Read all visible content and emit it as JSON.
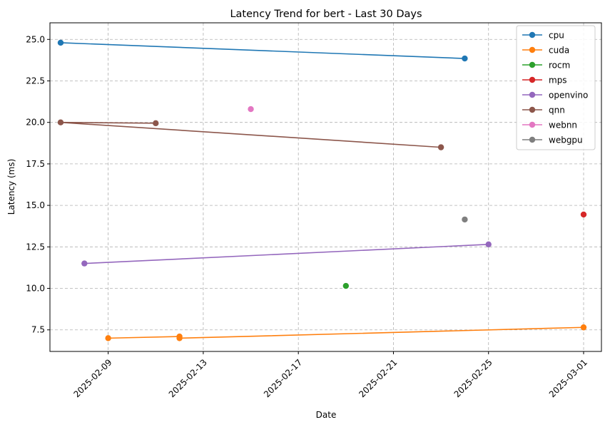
{
  "chart_data": {
    "type": "line",
    "title": "Latency Trend for bert - Last 30 Days",
    "xlabel": "Date",
    "ylabel": "Latency (ms)",
    "xlim": [
      "2025-02-06",
      "2025-03-01"
    ],
    "ylim": [
      6.2,
      26.0
    ],
    "x_ticks": [
      "2025-02-09",
      "2025-02-13",
      "2025-02-17",
      "2025-02-21",
      "2025-02-25",
      "2025-03-01"
    ],
    "y_ticks": [
      7.5,
      10.0,
      12.5,
      15.0,
      17.5,
      20.0,
      22.5,
      25.0
    ],
    "y_tick_labels": [
      "7.5",
      "10.0",
      "12.5",
      "15.0",
      "17.5",
      "20.0",
      "22.5",
      "25.0"
    ],
    "grid": true,
    "legend_position": "top-right",
    "series": [
      {
        "name": "cpu",
        "color": "#1f77b4",
        "points": [
          [
            "2025-02-07",
            24.8
          ],
          [
            "2025-02-24",
            23.85
          ]
        ]
      },
      {
        "name": "cuda",
        "color": "#ff7f0e",
        "points": [
          [
            "2025-03-01",
            7.65
          ],
          [
            "2025-02-12",
            7.0
          ],
          [
            "2025-02-12",
            7.1
          ],
          [
            "2025-02-09",
            7.0
          ]
        ]
      },
      {
        "name": "rocm",
        "color": "#2ca02c",
        "points": [
          [
            "2025-02-19",
            10.15
          ]
        ]
      },
      {
        "name": "mps",
        "color": "#d62728",
        "points": [
          [
            "2025-03-01",
            14.45
          ]
        ]
      },
      {
        "name": "openvino",
        "color": "#9467bd",
        "points": [
          [
            "2025-02-08",
            11.5
          ],
          [
            "2025-02-25",
            12.65
          ]
        ]
      },
      {
        "name": "qnn",
        "color": "#8c564b",
        "points": [
          [
            "2025-02-11",
            19.95
          ],
          [
            "2025-02-07",
            20.0
          ],
          [
            "2025-02-23",
            18.5
          ]
        ]
      },
      {
        "name": "webnn",
        "color": "#e377c2",
        "points": [
          [
            "2025-02-15",
            20.8
          ]
        ]
      },
      {
        "name": "webgpu",
        "color": "#7f7f7f",
        "points": [
          [
            "2025-02-24",
            14.15
          ]
        ]
      }
    ]
  }
}
